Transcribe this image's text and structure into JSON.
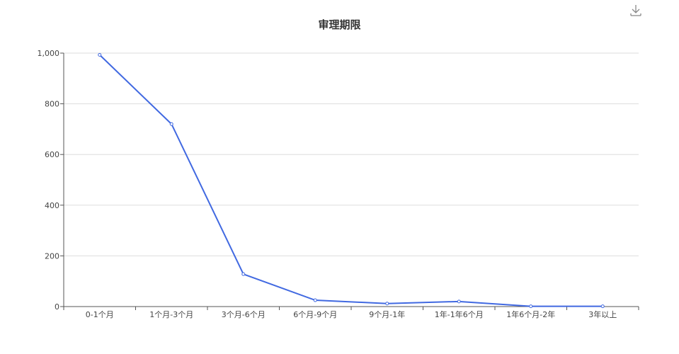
{
  "chart_data": {
    "type": "line",
    "title": "审理期限",
    "categories": [
      "0-1个月",
      "1个月-3个月",
      "3个月-6个月",
      "6个月-9个月",
      "9个月-1年",
      "1年-1年6个月",
      "1年6个月-2年",
      "3年以上"
    ],
    "series": [
      {
        "values": [
          993,
          720,
          128,
          25,
          12,
          20,
          1,
          1
        ]
      }
    ],
    "yticks": [
      "0",
      "200",
      "400",
      "600",
      "800",
      "1,000"
    ],
    "ylim": [
      0,
      1000
    ],
    "grid": true,
    "line_color": "#4169e1"
  },
  "toolbar": {
    "download_icon": "download-icon"
  }
}
